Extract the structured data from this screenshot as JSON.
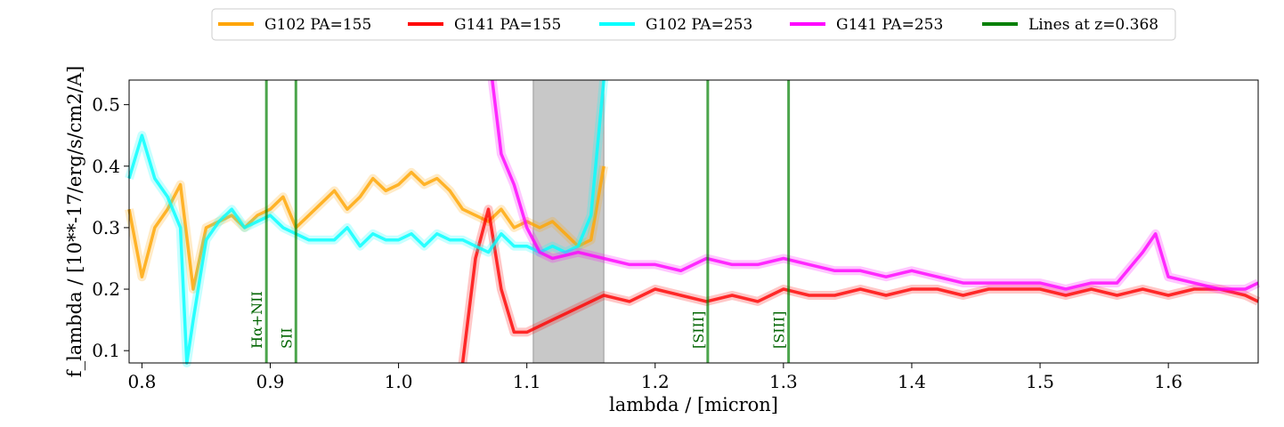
{
  "chart_data": {
    "type": "line",
    "xlabel": "lambda / [micron]",
    "ylabel": "f_lambda / [10**-17/erg/s/cm2/A]",
    "xlim": [
      0.79,
      1.67
    ],
    "ylim": [
      0.08,
      0.54
    ],
    "xticks": [
      0.8,
      0.9,
      1.0,
      1.1,
      1.2,
      1.3,
      1.4,
      1.5,
      1.6
    ],
    "yticks": [
      0.1,
      0.2,
      0.3,
      0.4,
      0.5
    ],
    "xtick_labels": [
      "0.8",
      "0.9",
      "1.0",
      "1.1",
      "1.2",
      "1.3",
      "1.4",
      "1.5",
      "1.6"
    ],
    "ytick_labels": [
      "0.1",
      "0.2",
      "0.3",
      "0.4",
      "0.5"
    ],
    "legend_position": "top, outside plot, single row",
    "grid": false,
    "shaded_region": {
      "x0": 1.105,
      "x1": 1.16,
      "color": "#c8c8c8"
    },
    "series": [
      {
        "name": "G102 PA=155",
        "color": "#FFA500",
        "x": [
          0.79,
          0.8,
          0.81,
          0.82,
          0.83,
          0.84,
          0.85,
          0.86,
          0.87,
          0.88,
          0.89,
          0.9,
          0.91,
          0.92,
          0.93,
          0.94,
          0.95,
          0.96,
          0.97,
          0.98,
          0.99,
          1.0,
          1.01,
          1.02,
          1.03,
          1.04,
          1.05,
          1.06,
          1.07,
          1.08,
          1.09,
          1.1,
          1.11,
          1.12,
          1.13,
          1.14,
          1.15,
          1.16
        ],
        "y": [
          0.33,
          0.22,
          0.3,
          0.33,
          0.37,
          0.2,
          0.3,
          0.31,
          0.32,
          0.3,
          0.32,
          0.33,
          0.35,
          0.3,
          0.32,
          0.34,
          0.36,
          0.33,
          0.35,
          0.38,
          0.36,
          0.37,
          0.39,
          0.37,
          0.38,
          0.36,
          0.33,
          0.32,
          0.31,
          0.33,
          0.3,
          0.31,
          0.3,
          0.31,
          0.29,
          0.27,
          0.28,
          0.4
        ]
      },
      {
        "name": "G141 PA=155",
        "color": "#FF0000",
        "x": [
          1.05,
          1.06,
          1.07,
          1.08,
          1.09,
          1.1,
          1.12,
          1.14,
          1.16,
          1.18,
          1.2,
          1.22,
          1.24,
          1.26,
          1.28,
          1.3,
          1.32,
          1.34,
          1.36,
          1.38,
          1.4,
          1.42,
          1.44,
          1.46,
          1.48,
          1.5,
          1.52,
          1.54,
          1.56,
          1.58,
          1.6,
          1.62,
          1.64,
          1.66,
          1.67
        ],
        "y": [
          0.08,
          0.25,
          0.33,
          0.2,
          0.13,
          0.13,
          0.15,
          0.17,
          0.19,
          0.18,
          0.2,
          0.19,
          0.18,
          0.19,
          0.18,
          0.2,
          0.19,
          0.19,
          0.2,
          0.19,
          0.2,
          0.2,
          0.19,
          0.2,
          0.2,
          0.2,
          0.19,
          0.2,
          0.19,
          0.2,
          0.19,
          0.2,
          0.2,
          0.19,
          0.18
        ]
      },
      {
        "name": "G102 PA=253",
        "color": "#00FFFF",
        "x": [
          0.79,
          0.8,
          0.81,
          0.82,
          0.83,
          0.835,
          0.84,
          0.85,
          0.86,
          0.87,
          0.88,
          0.89,
          0.9,
          0.91,
          0.92,
          0.93,
          0.94,
          0.95,
          0.96,
          0.97,
          0.98,
          0.99,
          1.0,
          1.01,
          1.02,
          1.03,
          1.04,
          1.05,
          1.06,
          1.07,
          1.08,
          1.09,
          1.1,
          1.11,
          1.12,
          1.13,
          1.14,
          1.15,
          1.16
        ],
        "y": [
          0.38,
          0.45,
          0.38,
          0.35,
          0.3,
          0.08,
          0.15,
          0.28,
          0.31,
          0.33,
          0.3,
          0.31,
          0.32,
          0.3,
          0.29,
          0.28,
          0.28,
          0.28,
          0.3,
          0.27,
          0.29,
          0.28,
          0.28,
          0.29,
          0.27,
          0.29,
          0.28,
          0.28,
          0.27,
          0.26,
          0.29,
          0.27,
          0.27,
          0.26,
          0.27,
          0.26,
          0.27,
          0.32,
          0.54
        ]
      },
      {
        "name": "G141 PA=253",
        "color": "#FF00FF",
        "x": [
          1.073,
          1.08,
          1.09,
          1.1,
          1.11,
          1.12,
          1.14,
          1.16,
          1.18,
          1.2,
          1.22,
          1.24,
          1.26,
          1.28,
          1.3,
          1.32,
          1.34,
          1.36,
          1.38,
          1.4,
          1.42,
          1.44,
          1.46,
          1.48,
          1.5,
          1.52,
          1.54,
          1.56,
          1.58,
          1.59,
          1.6,
          1.62,
          1.64,
          1.66,
          1.67
        ],
        "y": [
          0.54,
          0.42,
          0.37,
          0.3,
          0.26,
          0.25,
          0.26,
          0.25,
          0.24,
          0.24,
          0.23,
          0.25,
          0.24,
          0.24,
          0.25,
          0.24,
          0.23,
          0.23,
          0.22,
          0.23,
          0.22,
          0.21,
          0.21,
          0.21,
          0.21,
          0.2,
          0.21,
          0.21,
          0.26,
          0.29,
          0.22,
          0.21,
          0.2,
          0.2,
          0.21
        ]
      }
    ],
    "lines_legend": {
      "name": "Lines at z=0.368",
      "color": "#007F00"
    },
    "emission_lines": [
      {
        "label": "Hα+NII",
        "x": 0.897
      },
      {
        "label": "SII",
        "x": 0.92
      },
      {
        "label": "[SIII]",
        "x": 1.241
      },
      {
        "label": "[SIII]",
        "x": 1.304
      }
    ]
  }
}
